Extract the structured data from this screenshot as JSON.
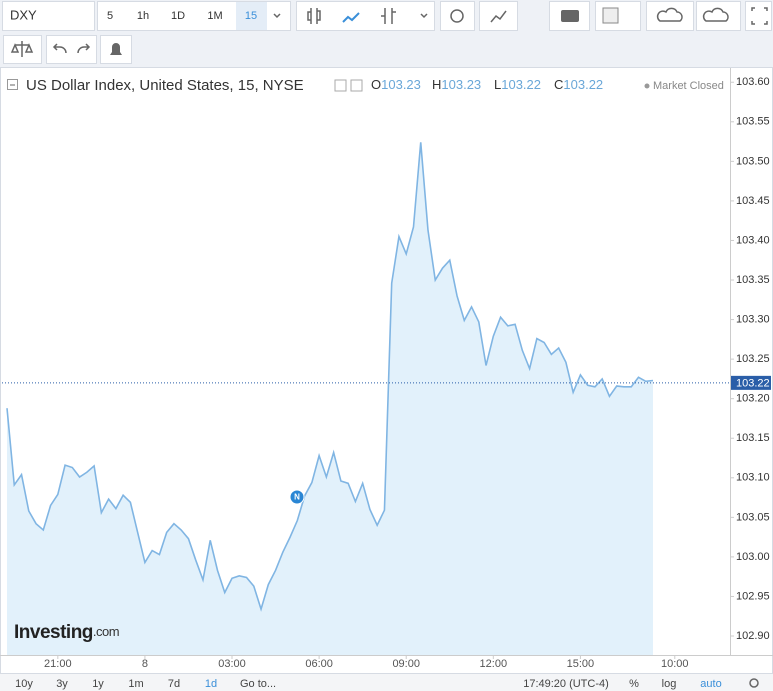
{
  "toolbar": {
    "symbol": "DXY",
    "intervals": [
      "5",
      "1h",
      "1D",
      "1M",
      "15"
    ]
  },
  "chart_data": {
    "type": "line",
    "title": "US Dollar Index, United States, 15, NYSE",
    "ohlc": [
      {
        "label": "O",
        "value": 103.23
      },
      {
        "label": "H",
        "value": 103.23
      },
      {
        "label": "L",
        "value": 103.22
      },
      {
        "label": "C",
        "value": 103.22
      }
    ],
    "status": "Market Closed",
    "last_value": 103.22,
    "event_marker": "N",
    "watermark": {
      "name": "Investing",
      "suffix": ".com"
    },
    "color": "#80b5e3",
    "fill": "#e2f1fb",
    "categories": [
      null,
      null,
      null,
      null,
      null,
      null,
      null,
      "21:00",
      null,
      null,
      null,
      null,
      null,
      null,
      null,
      null,
      null,
      null,
      null,
      "8",
      null,
      null,
      null,
      null,
      null,
      null,
      null,
      null,
      null,
      null,
      null,
      "03:00",
      null,
      null,
      null,
      null,
      null,
      null,
      null,
      null,
      null,
      null,
      null,
      "06:00",
      null,
      null,
      null,
      null,
      null,
      null,
      null,
      null,
      null,
      null,
      null,
      "09:00",
      null,
      null,
      null,
      null,
      null,
      null,
      null,
      null,
      null,
      null,
      null,
      "12:00",
      null,
      null,
      null,
      null,
      null,
      null,
      null,
      null,
      null,
      null,
      null,
      "15:00",
      null,
      null,
      null,
      null,
      null,
      null,
      null,
      null,
      null,
      null,
      null,
      null,
      "10:00"
    ],
    "values": [
      103.188,
      103.091,
      103.104,
      103.058,
      103.042,
      103.034,
      103.065,
      103.079,
      103.116,
      103.113,
      103.101,
      103.107,
      103.115,
      103.056,
      103.073,
      103.061,
      103.078,
      103.069,
      103.031,
      102.993,
      103.008,
      103.003,
      103.031,
      103.042,
      103.034,
      103.023,
      102.996,
      102.971,
      103.021,
      102.983,
      102.955,
      102.973,
      102.976,
      102.974,
      102.963,
      102.934,
      102.965,
      102.983,
      103.006,
      103.025,
      103.046,
      103.077,
      103.094,
      103.128,
      103.101,
      103.132,
      103.096,
      103.093,
      103.07,
      103.093,
      103.06,
      103.04,
      103.059,
      103.346,
      103.405,
      103.383,
      103.417,
      103.524,
      103.413,
      103.35,
      103.365,
      103.375,
      103.33,
      103.299,
      103.316,
      103.297,
      103.242,
      103.279,
      103.303,
      103.292,
      103.294,
      103.261,
      103.238,
      103.276,
      103.271,
      103.256,
      103.264,
      103.246,
      103.208,
      103.23,
      103.217,
      103.215,
      103.225,
      103.203,
      103.216,
      103.215,
      103.215,
      103.227,
      103.222,
      103.223,
      null,
      null,
      null
    ],
    "ylim": [
      102.876,
      103.618
    ],
    "yticks": [
      {
        "value": 103.6,
        "label": "103.60"
      },
      {
        "value": 103.55,
        "label": "103.55"
      },
      {
        "value": 103.5,
        "label": "103.50"
      },
      {
        "value": 103.45,
        "label": "103.45"
      },
      {
        "value": 103.4,
        "label": "103.40"
      },
      {
        "value": 103.35,
        "label": "103.35"
      },
      {
        "value": 103.3,
        "label": "103.30"
      },
      {
        "value": 103.25,
        "label": "103.25"
      },
      {
        "value": 103.2,
        "label": "103.20"
      },
      {
        "value": 103.15,
        "label": "103.15"
      },
      {
        "value": 103.1,
        "label": "103.10"
      },
      {
        "value": 103.05,
        "label": "103.05"
      },
      {
        "value": 103,
        "label": "103.00"
      },
      {
        "value": 102.95,
        "label": "102.95"
      },
      {
        "value": 102.9,
        "label": "102.90"
      }
    ]
  },
  "footer": {
    "ranges": [
      "10y",
      "3y",
      "1y",
      "1m",
      "7d",
      "1d"
    ],
    "goto": "Go to...",
    "time": "17:49:20 (UTC-4)",
    "options": [
      "%",
      "log",
      "auto"
    ]
  }
}
